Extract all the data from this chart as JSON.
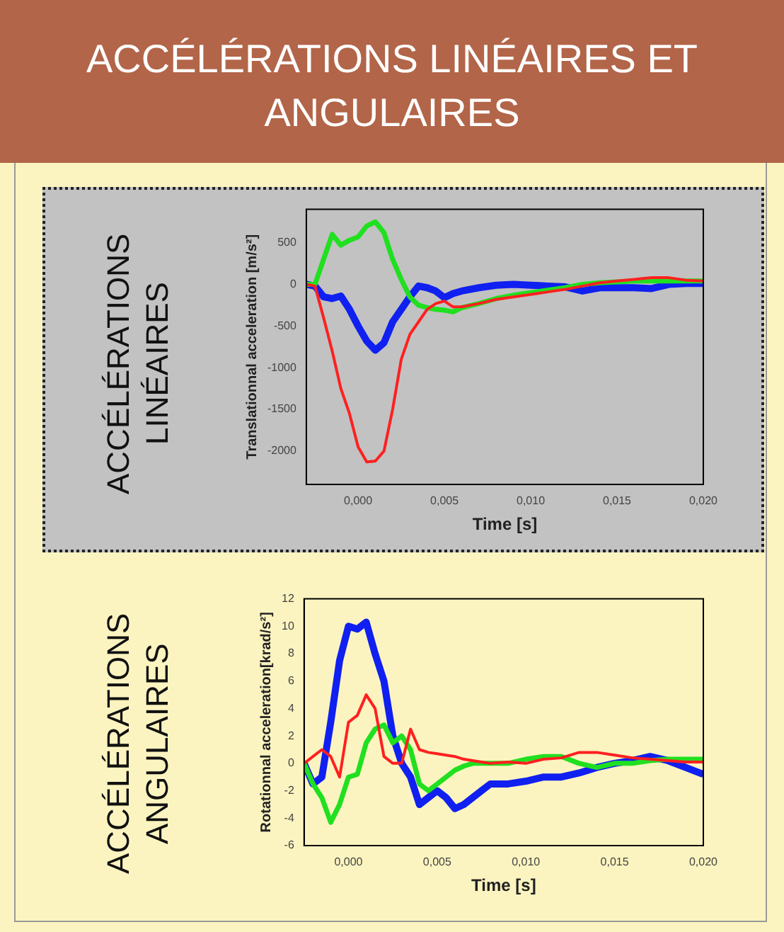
{
  "chart_data": [
    {
      "type": "other",
      "title": "ACCÉLÉRATIONS LINÉAIRES ET ANGULAIRES"
    },
    {
      "type": "line",
      "title": "ACCÉLÉRATIONS LINÉAIRES",
      "xlabel": "Time [s]",
      "ylabel": "Translationnal acceleration [m/s²]",
      "x": [
        -0.003,
        -0.0025,
        -0.002,
        -0.0015,
        -0.001,
        -0.0005,
        0,
        0.0005,
        0.001,
        0.0015,
        0.002,
        0.0025,
        0.003,
        0.0035,
        0.004,
        0.0045,
        0.005,
        0.0055,
        0.006,
        0.007,
        0.008,
        0.009,
        0.01,
        0.011,
        0.012,
        0.013,
        0.014,
        0.015,
        0.016,
        0.017,
        0.018,
        0.019,
        0.02
      ],
      "xlim": [
        -0.003,
        0.02
      ],
      "xticks": [
        {
          "value": 0,
          "label": "0,000"
        },
        {
          "value": 0.005,
          "label": "0,005"
        },
        {
          "value": 0.01,
          "label": "0,010"
        },
        {
          "value": 0.015,
          "label": "0,015"
        },
        {
          "value": 0.02,
          "label": "0,020"
        }
      ],
      "ylim": [
        -2400,
        900
      ],
      "yticks": [
        -2000,
        -1500,
        -1000,
        -500,
        0,
        500
      ],
      "series": [
        {
          "color": "#ff2020",
          "values": [
            0,
            -20,
            -400,
            -800,
            -1250,
            -1550,
            -1950,
            -2130,
            -2120,
            -2000,
            -1500,
            -900,
            -600,
            -450,
            -300,
            -230,
            -200,
            -270,
            -270,
            -230,
            -180,
            -150,
            -120,
            -90,
            -60,
            -20,
            20,
            40,
            60,
            80,
            80,
            50,
            40
          ]
        },
        {
          "color": "#20e020",
          "values": [
            0,
            0,
            300,
            600,
            470,
            530,
            570,
            700,
            750,
            620,
            300,
            60,
            -150,
            -250,
            -280,
            -300,
            -310,
            -330,
            -280,
            -230,
            -170,
            -130,
            -100,
            -70,
            -40,
            0,
            20,
            30,
            40,
            40,
            40,
            40,
            40
          ]
        },
        {
          "color": "#1020f0",
          "values": [
            0,
            -20,
            -150,
            -170,
            -140,
            -300,
            -500,
            -680,
            -790,
            -700,
            -450,
            -300,
            -150,
            -20,
            -40,
            -80,
            -160,
            -110,
            -80,
            -40,
            -10,
            0,
            -10,
            -20,
            -30,
            -80,
            -40,
            -40,
            -40,
            -50,
            0,
            10,
            10
          ]
        }
      ]
    },
    {
      "type": "line",
      "title": "ACCÉLÉRATIONS ANGULAIRES",
      "xlabel": "Time [s]",
      "ylabel": "Rotationnal acceleration[krad/s²]",
      "x": [
        -0.0025,
        -0.002,
        -0.0015,
        -0.001,
        -0.0005,
        0,
        0.0005,
        0.001,
        0.0015,
        0.002,
        0.0025,
        0.003,
        0.0035,
        0.004,
        0.0045,
        0.005,
        0.0055,
        0.006,
        0.0065,
        0.007,
        0.0075,
        0.008,
        0.009,
        0.01,
        0.011,
        0.012,
        0.013,
        0.014,
        0.015,
        0.016,
        0.017,
        0.018,
        0.019,
        0.02
      ],
      "xlim": [
        -0.0025,
        0.02
      ],
      "xticks": [
        {
          "value": 0,
          "label": "0,000"
        },
        {
          "value": 0.005,
          "label": "0,005"
        },
        {
          "value": 0.01,
          "label": "0,010"
        },
        {
          "value": 0.015,
          "label": "0,015"
        },
        {
          "value": 0.02,
          "label": "0,020"
        }
      ],
      "ylim": [
        -6,
        12
      ],
      "yticks": [
        -6,
        -4,
        -2,
        0,
        2,
        4,
        6,
        8,
        10,
        12
      ],
      "series": [
        {
          "color": "#ff2020",
          "values": [
            0,
            0.5,
            1,
            0.5,
            -1,
            3,
            3.5,
            5,
            4,
            0.5,
            0,
            0,
            2.5,
            1,
            0.8,
            0.7,
            0.6,
            0.5,
            0.3,
            0.2,
            0.1,
            0,
            0.1,
            0,
            0.3,
            0.4,
            0.8,
            0.8,
            0.6,
            0.4,
            0.3,
            0.2,
            0.1,
            0.1
          ]
        },
        {
          "color": "#20e020",
          "values": [
            0,
            -1.5,
            -2.5,
            -4.3,
            -3,
            -1,
            -0.8,
            1.5,
            2.5,
            2.8,
            1.5,
            2,
            1,
            -1.5,
            -2,
            -1.5,
            -1,
            -0.5,
            -0.2,
            0,
            0,
            0,
            0,
            0.3,
            0.5,
            0.5,
            0,
            -0.3,
            0,
            0,
            0.2,
            0.3,
            0.3,
            0.3
          ]
        },
        {
          "color": "#1020f0",
          "values": [
            0,
            -1.5,
            -1,
            3,
            7.5,
            10,
            9.8,
            10.3,
            8,
            6,
            2,
            0,
            -1,
            -3,
            -2.5,
            -2,
            -2.5,
            -3.3,
            -3,
            -2.5,
            -2,
            -1.5,
            -1.5,
            -1.3,
            -1,
            -1,
            -0.7,
            -0.3,
            0,
            0.2,
            0.5,
            0.2,
            -0.3,
            -0.8
          ]
        }
      ]
    }
  ]
}
